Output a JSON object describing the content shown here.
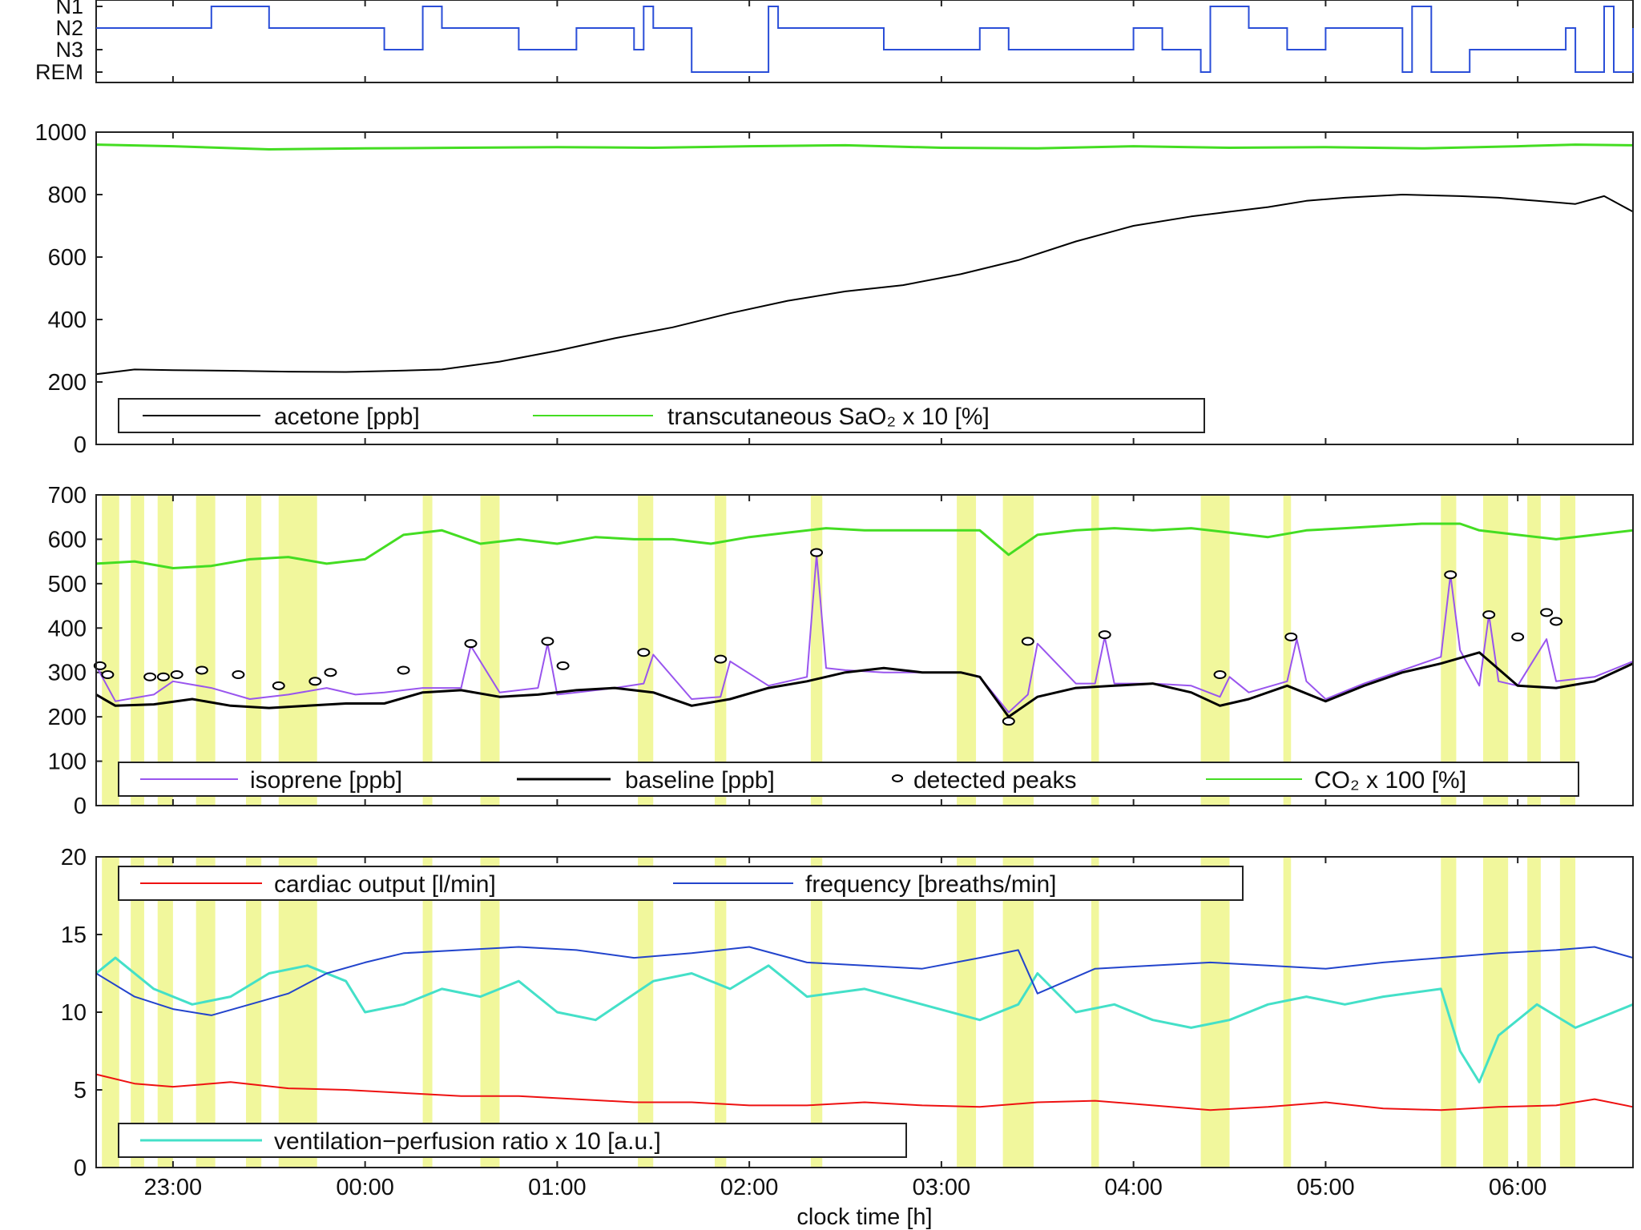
{
  "chart_data": {
    "type": "line",
    "xlabel": "clock time [h]",
    "x_ticks": [
      "23:00",
      "00:00",
      "01:00",
      "02:00",
      "03:00",
      "04:00",
      "05:00",
      "06:00"
    ],
    "x_range_hours": [
      22.6,
      30.6
    ],
    "colors": {
      "stage": "#2a4ed8",
      "acetone": "#000000",
      "sao2": "#44dd22",
      "isoprene": "#9955ee",
      "baseline": "#000000",
      "peaks": "#000000",
      "co2": "#44dd22",
      "cardiac": "#ee1111",
      "frequency": "#2244cc",
      "vq": "#44e0c8",
      "highlight": "#e6f04a"
    },
    "panels": [
      {
        "id": "hypnogram",
        "type": "step",
        "y_labels": [
          "N1",
          "N2",
          "N3",
          "REM"
        ],
        "stage_steps": [
          [
            22.6,
            1
          ],
          [
            23.2,
            0
          ],
          [
            23.5,
            1
          ],
          [
            24.1,
            2
          ],
          [
            24.3,
            0
          ],
          [
            24.4,
            1
          ],
          [
            24.8,
            2
          ],
          [
            25.1,
            1
          ],
          [
            25.4,
            2
          ],
          [
            25.45,
            0
          ],
          [
            25.5,
            1
          ],
          [
            25.7,
            3
          ],
          [
            26.1,
            0
          ],
          [
            26.15,
            1
          ],
          [
            26.7,
            2
          ],
          [
            27.2,
            1
          ],
          [
            27.35,
            2
          ],
          [
            28.0,
            1
          ],
          [
            28.15,
            2
          ],
          [
            28.35,
            3
          ],
          [
            28.4,
            0
          ],
          [
            28.6,
            1
          ],
          [
            28.8,
            2
          ],
          [
            29.0,
            1
          ],
          [
            29.4,
            3
          ],
          [
            29.45,
            0
          ],
          [
            29.55,
            3
          ],
          [
            29.75,
            2
          ],
          [
            30.25,
            1
          ],
          [
            30.3,
            3
          ],
          [
            30.45,
            0
          ],
          [
            30.5,
            3
          ],
          [
            30.6,
            1
          ]
        ]
      },
      {
        "id": "acetone-panel",
        "y_range": [
          0,
          1000
        ],
        "y_ticks": [
          0,
          200,
          400,
          600,
          800,
          1000
        ],
        "legend": [
          "acetone [ppb]",
          "transcutaneous SaO₂ x 10 [%]"
        ],
        "series": [
          {
            "name": "acetone [ppb]",
            "x": [
              22.6,
              22.8,
              23.0,
              23.3,
              23.6,
              23.9,
              24.1,
              24.4,
              24.7,
              25.0,
              25.3,
              25.6,
              25.9,
              26.2,
              26.5,
              26.8,
              27.1,
              27.4,
              27.7,
              28.0,
              28.3,
              28.5,
              28.7,
              28.9,
              29.1,
              29.4,
              29.7,
              29.9,
              30.1,
              30.3,
              30.45,
              30.6
            ],
            "y": [
              225,
              240,
              238,
              236,
              233,
              232,
              235,
              240,
              265,
              300,
              340,
              375,
              420,
              460,
              490,
              510,
              545,
              590,
              650,
              700,
              730,
              745,
              760,
              780,
              790,
              800,
              795,
              790,
              780,
              770,
              795,
              745
            ]
          },
          {
            "name": "transcutaneous SaO₂ x 10 [%]",
            "x": [
              22.6,
              23.0,
              23.5,
              24.0,
              24.5,
              25.0,
              25.5,
              26.0,
              26.5,
              27.0,
              27.5,
              28.0,
              28.5,
              29.0,
              29.5,
              30.0,
              30.3,
              30.6
            ],
            "y": [
              960,
              955,
              945,
              948,
              950,
              952,
              950,
              955,
              958,
              950,
              948,
              955,
              950,
              952,
              948,
              955,
              960,
              958
            ]
          }
        ]
      },
      {
        "id": "isoprene-panel",
        "y_range": [
          0,
          700
        ],
        "y_ticks": [
          0,
          100,
          200,
          300,
          400,
          500,
          600,
          700
        ],
        "legend": [
          "isoprene [ppb]",
          "baseline [ppb]",
          "detected peaks",
          "CO₂ x 100 [%]"
        ],
        "series": [
          {
            "name": "baseline [ppb]",
            "x": [
              22.6,
              22.7,
              22.9,
              23.1,
              23.3,
              23.5,
              23.7,
              23.9,
              24.1,
              24.3,
              24.5,
              24.7,
              24.9,
              25.1,
              25.3,
              25.5,
              25.7,
              25.9,
              26.1,
              26.3,
              26.5,
              26.7,
              26.9,
              27.1,
              27.2,
              27.35,
              27.5,
              27.7,
              27.9,
              28.1,
              28.3,
              28.45,
              28.6,
              28.8,
              29.0,
              29.2,
              29.4,
              29.6,
              29.8,
              30.0,
              30.2,
              30.4,
              30.6
            ],
            "y": [
              250,
              225,
              228,
              240,
              225,
              220,
              225,
              230,
              230,
              255,
              260,
              245,
              250,
              260,
              265,
              255,
              225,
              240,
              265,
              280,
              300,
              310,
              300,
              300,
              290,
              200,
              245,
              265,
              270,
              275,
              255,
              225,
              240,
              270,
              235,
              270,
              300,
              320,
              345,
              270,
              265,
              280,
              320
            ]
          },
          {
            "name": "isoprene [ppb]",
            "x": [
              22.6,
              22.7,
              22.9,
              23.0,
              23.2,
              23.4,
              23.6,
              23.8,
              23.95,
              24.1,
              24.3,
              24.5,
              24.55,
              24.7,
              24.9,
              24.95,
              25.0,
              25.1,
              25.3,
              25.45,
              25.5,
              25.7,
              25.85,
              25.9,
              26.1,
              26.3,
              26.35,
              26.4,
              26.5,
              26.7,
              26.9,
              27.1,
              27.2,
              27.35,
              27.45,
              27.5,
              27.7,
              27.8,
              27.85,
              27.9,
              28.1,
              28.3,
              28.45,
              28.5,
              28.6,
              28.8,
              28.85,
              28.9,
              29.0,
              29.2,
              29.4,
              29.6,
              29.65,
              29.7,
              29.8,
              29.85,
              29.9,
              30.0,
              30.15,
              30.2,
              30.4,
              30.6
            ],
            "y": [
              315,
              235,
              250,
              280,
              265,
              240,
              250,
              265,
              250,
              255,
              265,
              265,
              360,
              255,
              265,
              365,
              250,
              255,
              265,
              275,
              340,
              240,
              245,
              325,
              270,
              290,
              565,
              310,
              305,
              300,
              300,
              300,
              290,
              210,
              250,
              365,
              275,
              275,
              380,
              275,
              275,
              270,
              245,
              290,
              255,
              280,
              375,
              280,
              240,
              275,
              305,
              335,
              520,
              350,
              270,
              430,
              280,
              270,
              375,
              280,
              290,
              325
            ]
          },
          {
            "name": "CO₂ x 100 [%]",
            "x": [
              22.6,
              22.8,
              23.0,
              23.2,
              23.4,
              23.6,
              23.8,
              24.0,
              24.2,
              24.4,
              24.6,
              24.8,
              25.0,
              25.2,
              25.4,
              25.6,
              25.8,
              26.0,
              26.2,
              26.4,
              26.6,
              26.8,
              27.0,
              27.2,
              27.35,
              27.5,
              27.7,
              27.9,
              28.1,
              28.3,
              28.5,
              28.7,
              28.9,
              29.1,
              29.3,
              29.5,
              29.7,
              29.8,
              30.0,
              30.2,
              30.4,
              30.6
            ],
            "y": [
              545,
              550,
              535,
              540,
              555,
              560,
              545,
              555,
              610,
              620,
              590,
              600,
              590,
              605,
              600,
              600,
              590,
              605,
              615,
              625,
              620,
              620,
              620,
              620,
              565,
              610,
              620,
              625,
              620,
              625,
              615,
              605,
              620,
              625,
              630,
              635,
              635,
              620,
              610,
              600,
              610,
              620
            ]
          }
        ],
        "peaks": {
          "x": [
            22.62,
            22.66,
            22.88,
            22.95,
            23.02,
            23.15,
            23.34,
            23.55,
            23.74,
            23.82,
            24.2,
            24.55,
            24.95,
            25.03,
            25.45,
            25.85,
            26.35,
            27.35,
            27.45,
            27.85,
            28.45,
            28.82,
            29.65,
            29.85,
            30.0,
            30.15,
            30.2
          ],
          "y": [
            315,
            295,
            290,
            290,
            295,
            305,
            295,
            270,
            280,
            300,
            305,
            365,
            370,
            315,
            345,
            330,
            570,
            190,
            370,
            385,
            295,
            380,
            520,
            430,
            380,
            435,
            415
          ]
        }
      },
      {
        "id": "cardio-panel",
        "y_range": [
          0,
          20
        ],
        "y_ticks": [
          0,
          5,
          10,
          15,
          20
        ],
        "legend": [
          "cardiac output [l/min]",
          "frequency [breaths/min]",
          "ventilation−perfusion ratio x 10 [a.u.]"
        ],
        "series": [
          {
            "name": "cardiac output [l/min]",
            "x": [
              22.6,
              22.8,
              23.0,
              23.3,
              23.6,
              23.9,
              24.2,
              24.5,
              24.8,
              25.1,
              25.4,
              25.7,
              26.0,
              26.3,
              26.6,
              26.9,
              27.2,
              27.5,
              27.8,
              28.1,
              28.4,
              28.7,
              29.0,
              29.3,
              29.6,
              29.9,
              30.2,
              30.4,
              30.6
            ],
            "y": [
              6.0,
              5.4,
              5.2,
              5.5,
              5.1,
              5.0,
              4.8,
              4.6,
              4.6,
              4.4,
              4.2,
              4.2,
              4.0,
              4.0,
              4.2,
              4.0,
              3.9,
              4.2,
              4.3,
              4.0,
              3.7,
              3.9,
              4.2,
              3.8,
              3.7,
              3.9,
              4.0,
              4.4,
              3.9
            ]
          },
          {
            "name": "frequency [breaths/min]",
            "x": [
              22.6,
              22.8,
              23.0,
              23.2,
              23.4,
              23.6,
              23.8,
              24.0,
              24.2,
              24.5,
              24.8,
              25.1,
              25.4,
              25.7,
              26.0,
              26.3,
              26.6,
              26.9,
              27.2,
              27.4,
              27.5,
              27.8,
              28.1,
              28.4,
              28.7,
              29.0,
              29.3,
              29.6,
              29.9,
              30.2,
              30.4,
              30.6
            ],
            "y": [
              12.5,
              11.0,
              10.2,
              9.8,
              10.5,
              11.2,
              12.5,
              13.2,
              13.8,
              14.0,
              14.2,
              14.0,
              13.5,
              13.8,
              14.2,
              13.2,
              13.0,
              12.8,
              13.5,
              14.0,
              11.2,
              12.8,
              13.0,
              13.2,
              13.0,
              12.8,
              13.2,
              13.5,
              13.8,
              14.0,
              14.2,
              13.5
            ]
          },
          {
            "name": "ventilation−perfusion ratio x 10 [a.u.]",
            "x": [
              22.6,
              22.7,
              22.9,
              23.1,
              23.3,
              23.5,
              23.7,
              23.9,
              24.0,
              24.2,
              24.4,
              24.6,
              24.8,
              25.0,
              25.2,
              25.5,
              25.7,
              25.9,
              26.1,
              26.3,
              26.6,
              26.9,
              27.2,
              27.4,
              27.5,
              27.7,
              27.9,
              28.1,
              28.3,
              28.5,
              28.7,
              28.9,
              29.1,
              29.3,
              29.6,
              29.7,
              29.8,
              29.9,
              30.1,
              30.3,
              30.6
            ],
            "y": [
              12.5,
              13.5,
              11.5,
              10.5,
              11.0,
              12.5,
              13.0,
              12.0,
              10.0,
              10.5,
              11.5,
              11.0,
              12.0,
              10.0,
              9.5,
              12.0,
              12.5,
              11.5,
              13.0,
              11.0,
              11.5,
              10.5,
              9.5,
              10.5,
              12.5,
              10.0,
              10.5,
              9.5,
              9.0,
              9.5,
              10.5,
              11.0,
              10.5,
              11.0,
              11.5,
              7.5,
              5.5,
              8.5,
              10.5,
              9.0,
              10.5
            ]
          }
        ]
      }
    ],
    "highlight_bands_hours": [
      [
        22.63,
        22.72
      ],
      [
        22.78,
        22.85
      ],
      [
        22.92,
        23.0
      ],
      [
        23.12,
        23.22
      ],
      [
        23.38,
        23.46
      ],
      [
        23.55,
        23.75
      ],
      [
        24.3,
        24.35
      ],
      [
        24.6,
        24.7
      ],
      [
        25.42,
        25.5
      ],
      [
        25.82,
        25.88
      ],
      [
        26.32,
        26.38
      ],
      [
        27.08,
        27.18
      ],
      [
        27.32,
        27.48
      ],
      [
        27.78,
        27.82
      ],
      [
        28.35,
        28.5
      ],
      [
        28.78,
        28.82
      ],
      [
        29.6,
        29.68
      ],
      [
        29.82,
        29.95
      ],
      [
        30.05,
        30.12
      ],
      [
        30.22,
        30.3
      ]
    ]
  }
}
